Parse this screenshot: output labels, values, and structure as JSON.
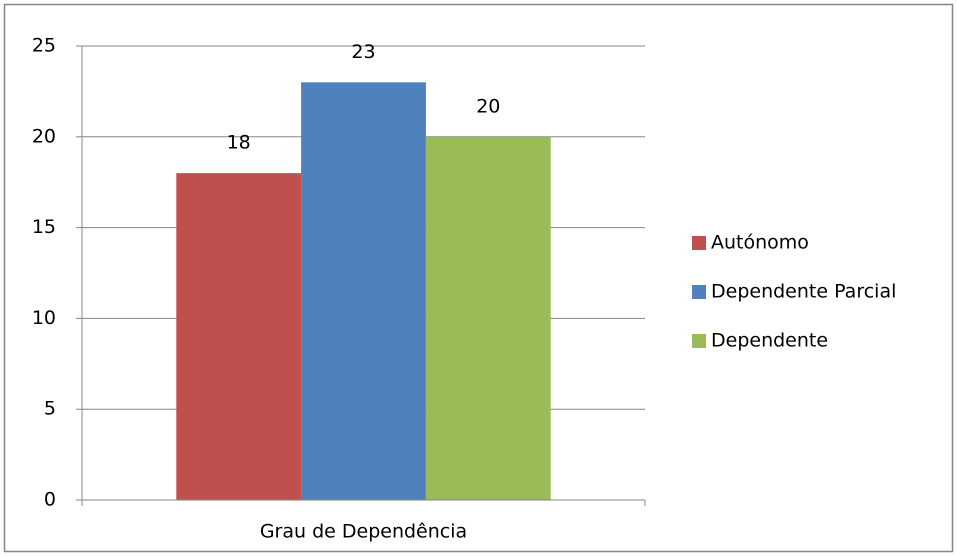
{
  "chart_data": {
    "type": "bar",
    "categories": [
      "Grau de Dependência"
    ],
    "series": [
      {
        "name": "Autónomo",
        "color": "#c0504d",
        "values": [
          18
        ]
      },
      {
        "name": "Dependente Parcial",
        "color": "#4f81bd",
        "values": [
          23
        ]
      },
      {
        "name": "Dependente",
        "color": "#9bbb59",
        "values": [
          20
        ]
      }
    ],
    "ylim": [
      0,
      25
    ],
    "yticks": [
      0,
      5,
      10,
      15,
      20,
      25
    ],
    "grid": true,
    "legend": "right"
  }
}
